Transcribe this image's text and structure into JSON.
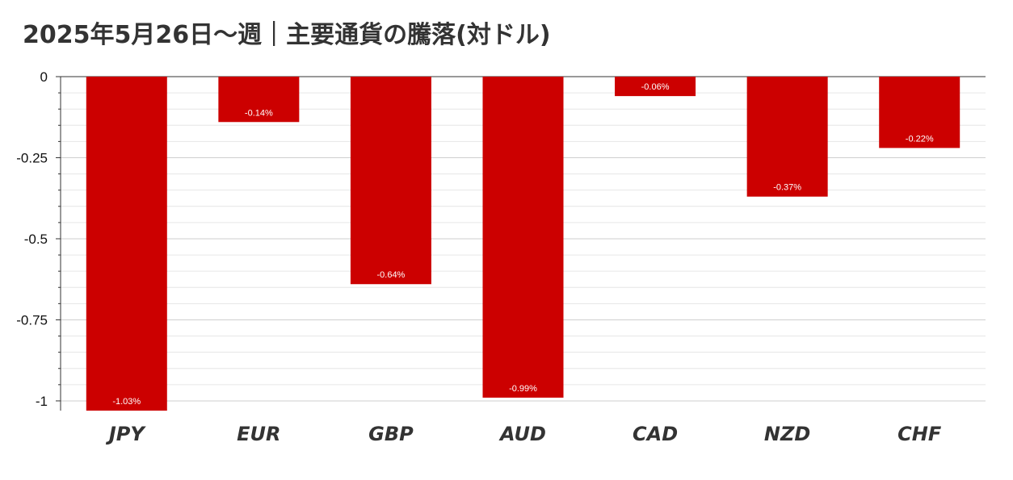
{
  "title": "2025年5月26日～週｜主要通貨の騰落(対ドル)",
  "colors": {
    "bar": "#cc0000",
    "grid": "#d6d6d6",
    "axis": "#333333"
  },
  "chart_data": {
    "type": "bar",
    "title": "2025年5月26日～週｜主要通貨の騰落(対ドル)",
    "categories": [
      "JPY",
      "EUR",
      "GBP",
      "AUD",
      "CAD",
      "NZD",
      "CHF"
    ],
    "values": [
      -1.03,
      -0.14,
      -0.64,
      -0.99,
      -0.06,
      -0.37,
      -0.22
    ],
    "data_labels": [
      "-1.03%",
      "-0.14%",
      "-0.64%",
      "-0.99%",
      "-0.06%",
      "-0.37%",
      "-0.22%"
    ],
    "ylim": [
      -1.03,
      0
    ],
    "yticks": [
      0,
      -0.25,
      -0.5,
      -0.75,
      -1
    ],
    "ytick_labels": [
      "0",
      "-0.25",
      "-0.5",
      "-0.75",
      "-1"
    ],
    "xlabel": "",
    "ylabel": "",
    "grid": true,
    "legend": "none"
  }
}
